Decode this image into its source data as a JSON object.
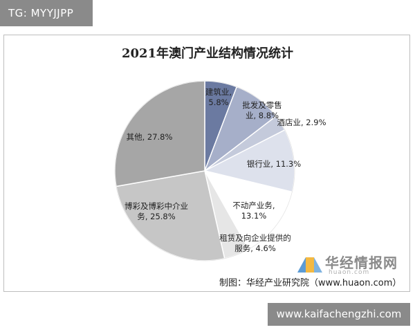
{
  "tg_label": "TG: MYYJJPP",
  "site_label": "www.kaifachengzhi.com",
  "watermark": {
    "name": "华经情报网",
    "sub": "huaon.com"
  },
  "source": "制图：华经产业研究院（www.huaon.com）",
  "chart_data": {
    "type": "pie",
    "title": "2021年澳门产业结构情况统计",
    "slices": [
      {
        "label_lines": [
          "建筑业,",
          "5.8%"
        ],
        "value": 5.8,
        "color": "#6b7aa1"
      },
      {
        "label_lines": [
          "批发及零售",
          "业, 8.8%"
        ],
        "value": 8.8,
        "color": "#a6afc9"
      },
      {
        "label_lines": [
          "酒店业, 2.9%"
        ],
        "value": 2.9,
        "color": "#c4cadb"
      },
      {
        "label_lines": [
          "银行业, 11.3%"
        ],
        "value": 11.3,
        "color": "#dde1ec"
      },
      {
        "label_lines": [
          "不动产业务,",
          "13.1%"
        ],
        "value": 13.1,
        "color": "#ffffff"
      },
      {
        "label_lines": [
          "租赁及向企业提供的",
          "服务, 4.6%"
        ],
        "value": 4.6,
        "color": "#e6e6e6"
      },
      {
        "label_lines": [
          "博彩及博彩中介业",
          "务, 25.8%"
        ],
        "value": 25.8,
        "color": "#c6c6c6"
      },
      {
        "label_lines": [
          "其他, 27.8%"
        ],
        "value": 27.8,
        "color": "#a6a6a6"
      }
    ]
  }
}
